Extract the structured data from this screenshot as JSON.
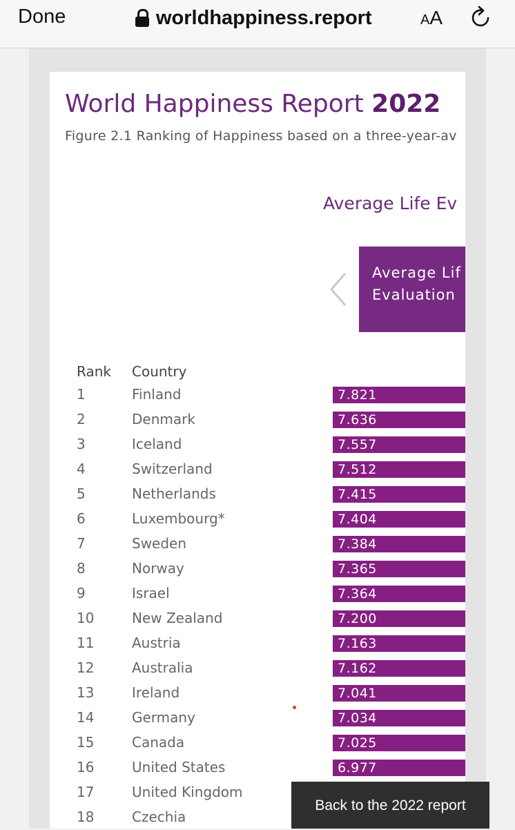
{
  "browser": {
    "done_label": "Done",
    "url": "worldhappiness.report",
    "text_size_small": "A",
    "text_size_big": "A",
    "icons": [
      "lock-icon",
      "text-size-icon",
      "reload-icon"
    ]
  },
  "page": {
    "title_main": "World Happiness Report",
    "title_year": "2022",
    "subtitle": "Figure 2.1 Ranking of Happiness based on a three-year-av",
    "section_heading": "Average Life Ev",
    "legend_line1": "Average Lif",
    "legend_line2": "Evaluation",
    "col_rank": "Rank",
    "col_country": "Country",
    "accent_color": "#772a82",
    "bar_color": "#861f82"
  },
  "rows": [
    {
      "rank": "1",
      "country": "Finland",
      "score": "7.821"
    },
    {
      "rank": "2",
      "country": "Denmark",
      "score": "7.636"
    },
    {
      "rank": "3",
      "country": "Iceland",
      "score": "7.557"
    },
    {
      "rank": "4",
      "country": "Switzerland",
      "score": "7.512"
    },
    {
      "rank": "5",
      "country": "Netherlands",
      "score": "7.415"
    },
    {
      "rank": "6",
      "country": "Luxembourg*",
      "score": "7.404"
    },
    {
      "rank": "7",
      "country": "Sweden",
      "score": "7.384"
    },
    {
      "rank": "8",
      "country": "Norway",
      "score": "7.365"
    },
    {
      "rank": "9",
      "country": "Israel",
      "score": "7.364"
    },
    {
      "rank": "10",
      "country": "New Zealand",
      "score": "7.200"
    },
    {
      "rank": "11",
      "country": "Austria",
      "score": "7.163"
    },
    {
      "rank": "12",
      "country": "Australia",
      "score": "7.162"
    },
    {
      "rank": "13",
      "country": "Ireland",
      "score": "7.041"
    },
    {
      "rank": "14",
      "country": "Germany",
      "score": "7.034"
    },
    {
      "rank": "15",
      "country": "Canada",
      "score": "7.025"
    },
    {
      "rank": "16",
      "country": "United States",
      "score": "6.977"
    },
    {
      "rank": "17",
      "country": "United Kingdom",
      "score": ""
    },
    {
      "rank": "18",
      "country": "Czechia",
      "score": ""
    }
  ],
  "toast": {
    "label": "Back to the 2022 report"
  }
}
